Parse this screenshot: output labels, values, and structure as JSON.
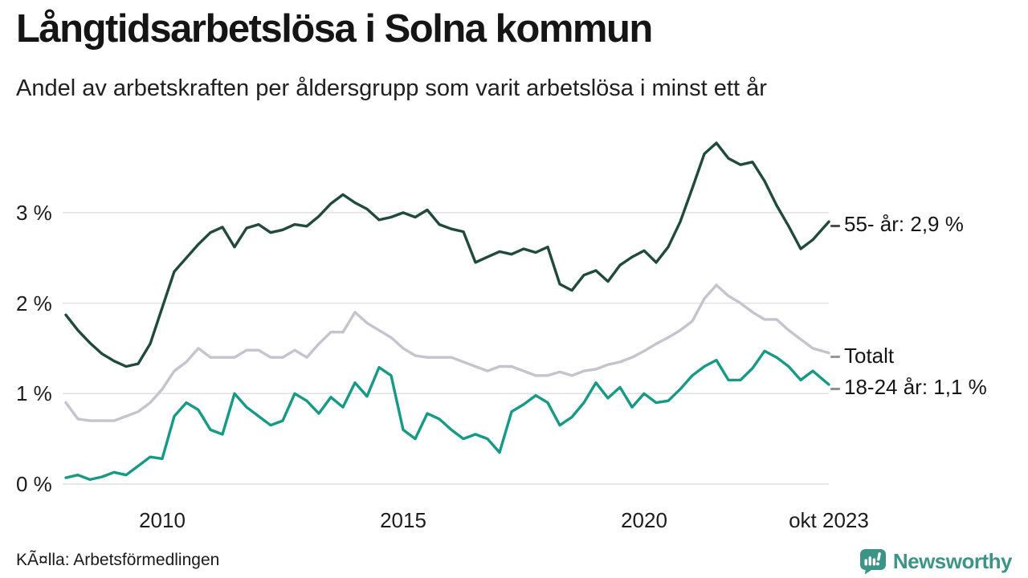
{
  "chart_data": {
    "type": "line",
    "title": "Långtidsarbetslösa i Solna kommun",
    "subtitle": "Andel av arbetskraften per åldersgrupp som varit arbetslösa i minst ett år",
    "source": "KÃ¤lla: Arbetsförmedlingen",
    "x_start_year": 2008,
    "x_step_years": 0.25,
    "x_last_offset_years": 15.833,
    "ylim": [
      0,
      3.9
    ],
    "grid": true,
    "legend_position": "right-end-labels",
    "yticks": [
      {
        "label": "0 %",
        "value": 0
      },
      {
        "label": "1 %",
        "value": 1
      },
      {
        "label": "2 %",
        "value": 2
      },
      {
        "label": "3 %",
        "value": 3
      }
    ],
    "xticks": [
      {
        "label": "2010",
        "year": 2010
      },
      {
        "label": "2015",
        "year": 2015
      },
      {
        "label": "2020",
        "year": 2020
      },
      {
        "label": "okt 2023",
        "year": 2023.833
      }
    ],
    "series": [
      {
        "name": "55- år",
        "end_label": "55- år: 2,9 %",
        "end_value": 2.9,
        "color": "#1f4a3c",
        "tick_color": "#4d4d4d",
        "values": [
          1.87,
          1.7,
          1.56,
          1.44,
          1.36,
          1.3,
          1.33,
          1.55,
          1.95,
          2.35,
          2.5,
          2.65,
          2.78,
          2.84,
          2.62,
          2.83,
          2.87,
          2.78,
          2.81,
          2.87,
          2.85,
          2.96,
          3.1,
          3.2,
          3.11,
          3.04,
          2.92,
          2.95,
          3.0,
          2.95,
          3.03,
          2.87,
          2.82,
          2.79,
          2.45,
          2.51,
          2.57,
          2.54,
          2.6,
          2.56,
          2.62,
          2.21,
          2.14,
          2.31,
          2.36,
          2.24,
          2.42,
          2.51,
          2.58,
          2.45,
          2.62,
          2.9,
          3.27,
          3.65,
          3.77,
          3.6,
          3.53,
          3.56,
          3.35,
          3.08,
          2.85,
          2.6,
          2.7,
          2.9
        ]
      },
      {
        "name": "Totalt",
        "end_label": "Totalt",
        "end_value": 1.45,
        "color": "#c5c3ce",
        "tick_color": "#98969f",
        "values": [
          0.9,
          0.72,
          0.7,
          0.7,
          0.7,
          0.75,
          0.8,
          0.9,
          1.05,
          1.25,
          1.35,
          1.5,
          1.4,
          1.4,
          1.4,
          1.48,
          1.48,
          1.4,
          1.4,
          1.48,
          1.4,
          1.55,
          1.68,
          1.68,
          1.9,
          1.78,
          1.7,
          1.62,
          1.5,
          1.42,
          1.4,
          1.4,
          1.4,
          1.35,
          1.3,
          1.25,
          1.3,
          1.3,
          1.25,
          1.2,
          1.2,
          1.24,
          1.2,
          1.25,
          1.27,
          1.32,
          1.35,
          1.4,
          1.47,
          1.55,
          1.62,
          1.7,
          1.8,
          2.05,
          2.2,
          2.08,
          2.0,
          1.9,
          1.82,
          1.82,
          1.7,
          1.6,
          1.5,
          1.45
        ]
      },
      {
        "name": "18-24 år",
        "end_label": "18-24 år: 1,1 %",
        "end_value": 1.1,
        "color": "#169a86",
        "tick_color": "#8f8f8f",
        "values": [
          0.07,
          0.1,
          0.05,
          0.08,
          0.13,
          0.1,
          0.2,
          0.3,
          0.28,
          0.75,
          0.9,
          0.82,
          0.6,
          0.55,
          1.0,
          0.85,
          0.75,
          0.65,
          0.7,
          1.0,
          0.92,
          0.78,
          0.96,
          0.85,
          1.12,
          0.97,
          1.29,
          1.2,
          0.6,
          0.5,
          0.78,
          0.72,
          0.6,
          0.5,
          0.55,
          0.5,
          0.35,
          0.8,
          0.88,
          0.98,
          0.9,
          0.65,
          0.74,
          0.9,
          1.12,
          0.95,
          1.07,
          0.85,
          1.0,
          0.9,
          0.92,
          1.05,
          1.2,
          1.3,
          1.37,
          1.15,
          1.15,
          1.28,
          1.47,
          1.4,
          1.3,
          1.15,
          1.25,
          1.1
        ]
      }
    ]
  },
  "brand": {
    "name": "Newsworthy",
    "color": "#3b9487"
  },
  "colors": {
    "grid": "#e1e1e4",
    "background": "#ffffff",
    "text": "#1a1a1a"
  }
}
